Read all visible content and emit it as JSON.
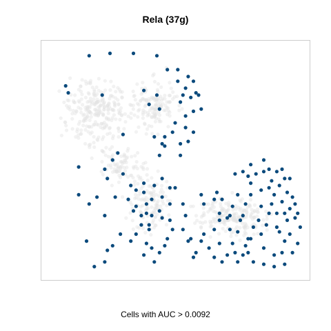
{
  "chart_data": {
    "type": "scatter",
    "title": "Rela (37g)",
    "caption": "Cells with AUC > 0.0092",
    "xlabel": "",
    "ylabel": "",
    "xlim": [
      0,
      100
    ],
    "ylim": [
      0,
      100
    ],
    "grid": false,
    "axes": false,
    "colors": {
      "highlight": "#0b4a7c",
      "background": "#e3e3e3",
      "frame": "#cccccc"
    },
    "series": [
      {
        "name": "",
        "color": "#0b4a7c",
        "points": [
          [
            17,
            95
          ],
          [
            25,
            96
          ],
          [
            34,
            96
          ],
          [
            43,
            95
          ],
          [
            8,
            82
          ],
          [
            9,
            79
          ],
          [
            22,
            78
          ],
          [
            38,
            80
          ],
          [
            43,
            78
          ],
          [
            40,
            74
          ],
          [
            44,
            72
          ],
          [
            52,
            75
          ],
          [
            53,
            78
          ],
          [
            51,
            84
          ],
          [
            55,
            86
          ],
          [
            51,
            89
          ],
          [
            50,
            66
          ],
          [
            54,
            64
          ],
          [
            42,
            60
          ],
          [
            46,
            60
          ],
          [
            49,
            62
          ],
          [
            45,
            57
          ],
          [
            52,
            57
          ],
          [
            44,
            52
          ],
          [
            46,
            56
          ],
          [
            52,
            52
          ],
          [
            55,
            58
          ],
          [
            54,
            69
          ],
          [
            57,
            62
          ],
          [
            57,
            71
          ],
          [
            56,
            77
          ],
          [
            59,
            78
          ],
          [
            60,
            72
          ],
          [
            58,
            79
          ],
          [
            47,
            89
          ],
          [
            57,
            84
          ],
          [
            54,
            81
          ],
          [
            30,
            61
          ],
          [
            28,
            53
          ],
          [
            26,
            50
          ],
          [
            23,
            46
          ],
          [
            13,
            47
          ],
          [
            30,
            44
          ],
          [
            24,
            42
          ],
          [
            33,
            39
          ],
          [
            38,
            40
          ],
          [
            35,
            37
          ],
          [
            32,
            33
          ],
          [
            35,
            30
          ],
          [
            39,
            31
          ],
          [
            27,
            34
          ],
          [
            40,
            22
          ],
          [
            44,
            28
          ],
          [
            48,
            24
          ],
          [
            35,
            18
          ],
          [
            39,
            14
          ],
          [
            41,
            12
          ],
          [
            46,
            13
          ],
          [
            44,
            10
          ],
          [
            41,
            26
          ],
          [
            40,
            20
          ],
          [
            37,
            22
          ],
          [
            41,
            33
          ],
          [
            42,
            39
          ],
          [
            45,
            34
          ],
          [
            48,
            38
          ],
          [
            38,
            36
          ],
          [
            39,
            27
          ],
          [
            45,
            25
          ],
          [
            48,
            31
          ],
          [
            47,
            16
          ],
          [
            49,
            20
          ],
          [
            38,
            9
          ],
          [
            42,
            6
          ],
          [
            34,
            28
          ],
          [
            33,
            15
          ],
          [
            37,
            26
          ],
          [
            29,
            18
          ],
          [
            26,
            13
          ],
          [
            23,
            26
          ],
          [
            24,
            11
          ],
          [
            20,
            34
          ],
          [
            17,
            31
          ],
          [
            13,
            35
          ],
          [
            23,
            6
          ],
          [
            19,
            4
          ],
          [
            16,
            15
          ],
          [
            54,
            26
          ],
          [
            53,
            20
          ],
          [
            56,
            16
          ],
          [
            50,
            38
          ],
          [
            45,
            42
          ],
          [
            60,
            35
          ],
          [
            61,
            31
          ],
          [
            65,
            33
          ],
          [
            68,
            33
          ],
          [
            66,
            36
          ],
          [
            61,
            18
          ],
          [
            58,
            10
          ],
          [
            55,
            15
          ],
          [
            57,
            8
          ],
          [
            53,
            31
          ],
          [
            76,
            26
          ],
          [
            77,
            31
          ],
          [
            79,
            35
          ],
          [
            83,
            30
          ],
          [
            83,
            37
          ],
          [
            86,
            38
          ],
          [
            87,
            41
          ],
          [
            90,
            39
          ],
          [
            88,
            35
          ],
          [
            87,
            31
          ],
          [
            86,
            27
          ],
          [
            89,
            27
          ],
          [
            92,
            27
          ],
          [
            94,
            29
          ],
          [
            93,
            24
          ],
          [
            97,
            27
          ],
          [
            96,
            31
          ],
          [
            95,
            34
          ],
          [
            93,
            36
          ],
          [
            91,
            32
          ],
          [
            90,
            19
          ],
          [
            89,
            21
          ],
          [
            85,
            22
          ],
          [
            82,
            24
          ],
          [
            80,
            21
          ],
          [
            83,
            18
          ],
          [
            78,
            16
          ],
          [
            74,
            19
          ],
          [
            75,
            24
          ],
          [
            71,
            26
          ],
          [
            67,
            27
          ],
          [
            72,
            30
          ],
          [
            74,
            35
          ],
          [
            79,
            40
          ],
          [
            81,
            44
          ],
          [
            84,
            45
          ],
          [
            86,
            46
          ],
          [
            92,
            42
          ],
          [
            91,
            46
          ],
          [
            89,
            45
          ],
          [
            78,
            43
          ],
          [
            79,
            48
          ],
          [
            84,
            50
          ],
          [
            94,
            42
          ],
          [
            96,
            25
          ],
          [
            94,
            18
          ],
          [
            92,
            15
          ],
          [
            91,
            10
          ],
          [
            88,
            9
          ],
          [
            84,
            12
          ],
          [
            79,
            16
          ],
          [
            77,
            13
          ],
          [
            71,
            20
          ],
          [
            70,
            25
          ],
          [
            67,
            24
          ],
          [
            73,
            44
          ],
          [
            76,
            45
          ],
          [
            65,
            20
          ],
          [
            60,
            15
          ],
          [
            63,
            12
          ],
          [
            65,
            8
          ],
          [
            68,
            6
          ],
          [
            70,
            9
          ],
          [
            72,
            14
          ],
          [
            73,
            10
          ],
          [
            67,
            14
          ],
          [
            74,
            6
          ],
          [
            76,
            9
          ],
          [
            78,
            10
          ],
          [
            80,
            6
          ],
          [
            84,
            5
          ],
          [
            88,
            4
          ],
          [
            92,
            5
          ],
          [
            95,
            10
          ],
          [
            97,
            14
          ],
          [
            98,
            21
          ]
        ]
      }
    ]
  }
}
